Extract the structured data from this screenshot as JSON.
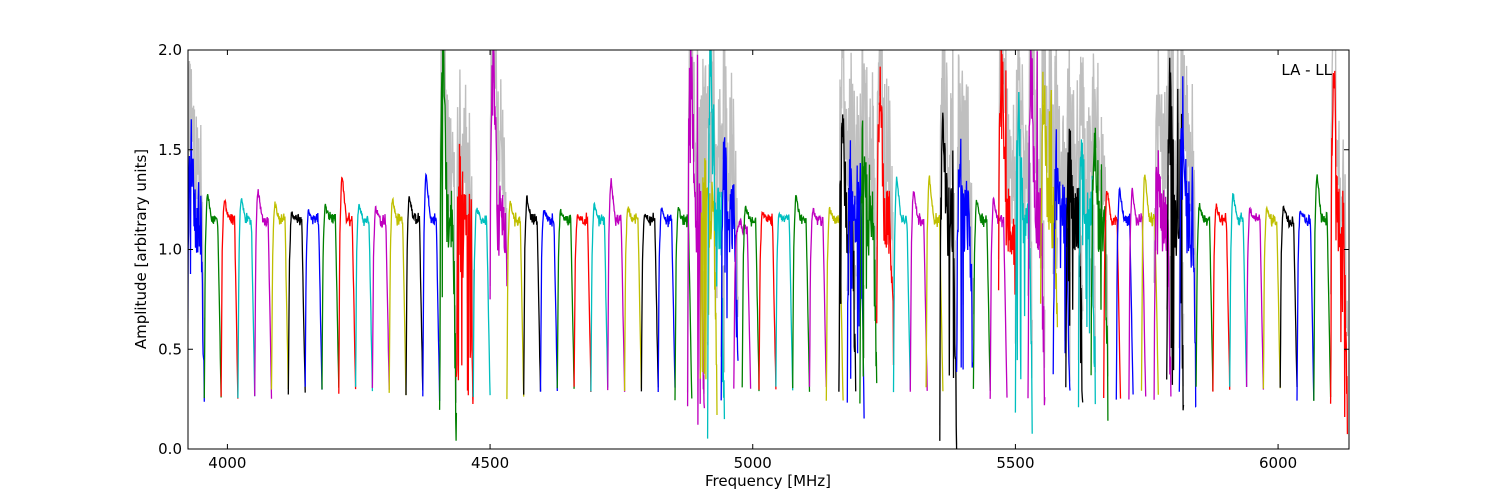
{
  "chart_data": {
    "type": "line",
    "annotation": "LA - LL",
    "xlabel": "Frequency [MHz]",
    "ylabel": "Amplitude [arbitrary units]",
    "xlim": [
      3925,
      6135
    ],
    "ylim": [
      0.0,
      2.0
    ],
    "xticks": [
      4000,
      4500,
      5000,
      5500,
      6000
    ],
    "xtick_labels": [
      "4000",
      "4500",
      "5000",
      "5500",
      "6000"
    ],
    "yticks": [
      0.0,
      0.5,
      1.0,
      1.5,
      2.0
    ],
    "ytick_labels": [
      "0.0",
      "0.5",
      "1.0",
      "1.5",
      "2.0"
    ],
    "grid": false,
    "band_width_mhz": 32,
    "color_cycle": [
      "#0000ff",
      "#008000",
      "#ff0000",
      "#00bfbf",
      "#bf00bf",
      "#bfbf00",
      "#000000"
    ],
    "background_series_color": "#bfbfbf",
    "series": [
      {
        "x": 3924,
        "peak": 1.55,
        "min": 0.28,
        "color": "#0000ff"
      },
      {
        "x": 3956,
        "peak": 1.28,
        "min": 0.26,
        "color": "#008000"
      },
      {
        "x": 3988,
        "peak": 1.25,
        "min": 0.26,
        "color": "#ff0000"
      },
      {
        "x": 4020,
        "peak": 1.26,
        "min": 0.26,
        "color": "#00bfbf"
      },
      {
        "x": 4052,
        "peak": 1.3,
        "min": 0.26,
        "color": "#bf00bf"
      },
      {
        "x": 4084,
        "peak": 1.23,
        "min": 0.29,
        "color": "#bfbf00"
      },
      {
        "x": 4116,
        "peak": 1.18,
        "min": 0.28,
        "color": "#000000"
      },
      {
        "x": 4148,
        "peak": 1.19,
        "min": 0.3,
        "color": "#0000ff"
      },
      {
        "x": 4180,
        "peak": 1.22,
        "min": 0.3,
        "color": "#008000"
      },
      {
        "x": 4212,
        "peak": 1.37,
        "min": 0.29,
        "color": "#ff0000"
      },
      {
        "x": 4244,
        "peak": 1.23,
        "min": 0.3,
        "color": "#00bfbf"
      },
      {
        "x": 4276,
        "peak": 1.21,
        "min": 0.3,
        "color": "#bf00bf"
      },
      {
        "x": 4308,
        "peak": 1.25,
        "min": 0.28,
        "color": "#bfbf00"
      },
      {
        "x": 4340,
        "peak": 1.27,
        "min": 0.28,
        "color": "#000000"
      },
      {
        "x": 4372,
        "peak": 1.38,
        "min": 0.25,
        "color": "#0000ff"
      },
      {
        "x": 4404,
        "peak": 2.0,
        "min": 0.04,
        "color": "#008000"
      },
      {
        "x": 4436,
        "peak": 1.43,
        "min": 0.25,
        "color": "#ff0000"
      },
      {
        "x": 4468,
        "peak": 1.2,
        "min": 0.26,
        "color": "#00bfbf"
      },
      {
        "x": 4500,
        "peak": 2.0,
        "min": 0.9,
        "color": "#bf00bf"
      },
      {
        "x": 4532,
        "peak": 1.24,
        "min": 0.26,
        "color": "#bfbf00"
      },
      {
        "x": 4564,
        "peak": 1.26,
        "min": 0.28,
        "color": "#000000"
      },
      {
        "x": 4596,
        "peak": 1.2,
        "min": 0.3,
        "color": "#0000ff"
      },
      {
        "x": 4628,
        "peak": 1.19,
        "min": 0.3,
        "color": "#008000"
      },
      {
        "x": 4660,
        "peak": 1.17,
        "min": 0.3,
        "color": "#ff0000"
      },
      {
        "x": 4692,
        "peak": 1.22,
        "min": 0.3,
        "color": "#00bfbf"
      },
      {
        "x": 4724,
        "peak": 1.35,
        "min": 0.3,
        "color": "#bf00bf"
      },
      {
        "x": 4756,
        "peak": 1.21,
        "min": 0.3,
        "color": "#bfbf00"
      },
      {
        "x": 4788,
        "peak": 1.18,
        "min": 0.3,
        "color": "#000000"
      },
      {
        "x": 4820,
        "peak": 1.2,
        "min": 0.3,
        "color": "#0000ff"
      },
      {
        "x": 4852,
        "peak": 1.2,
        "min": 0.25,
        "color": "#008000"
      },
      {
        "x": 4876,
        "peak": 2.0,
        "min": 0.1,
        "color": "#bf00bf"
      },
      {
        "x": 4900,
        "peak": 1.4,
        "min": 0.25,
        "color": "#bfbf00"
      },
      {
        "x": 4914,
        "peak": 2.0,
        "min": 0.09,
        "color": "#00bfbf"
      },
      {
        "x": 4940,
        "peak": 1.5,
        "min": 0.28,
        "color": "#0000ff"
      },
      {
        "x": 4964,
        "peak": 1.1,
        "min": 0.3,
        "color": "#bf00bf"
      },
      {
        "x": 4980,
        "peak": 1.22,
        "min": 0.3,
        "color": "#008000"
      },
      {
        "x": 5012,
        "peak": 1.18,
        "min": 0.3,
        "color": "#ff0000"
      },
      {
        "x": 5044,
        "peak": 1.18,
        "min": 0.3,
        "color": "#00bfbf"
      },
      {
        "x": 5076,
        "peak": 1.27,
        "min": 0.3,
        "color": "#008000"
      },
      {
        "x": 5108,
        "peak": 1.2,
        "min": 0.3,
        "color": "#bf00bf"
      },
      {
        "x": 5140,
        "peak": 1.2,
        "min": 0.23,
        "color": "#bfbf00"
      },
      {
        "x": 5164,
        "peak": 1.68,
        "min": 0.25,
        "color": "#000000"
      },
      {
        "x": 5180,
        "peak": 1.45,
        "min": 0.3,
        "color": "#0000ff"
      },
      {
        "x": 5204,
        "peak": 1.55,
        "min": 0.3,
        "color": "#008000"
      },
      {
        "x": 5236,
        "peak": 1.8,
        "min": 0.55,
        "color": "#ff0000"
      },
      {
        "x": 5268,
        "peak": 1.36,
        "min": 0.3,
        "color": "#00bfbf"
      },
      {
        "x": 5300,
        "peak": 1.3,
        "min": 0.3,
        "color": "#bf00bf"
      },
      {
        "x": 5330,
        "peak": 1.36,
        "min": 0.3,
        "color": "#bfbf00"
      },
      {
        "x": 5356,
        "peak": 1.62,
        "min": 0.09,
        "color": "#000000"
      },
      {
        "x": 5388,
        "peak": 1.5,
        "min": 0.25,
        "color": "#0000ff"
      },
      {
        "x": 5420,
        "peak": 1.24,
        "min": 0.3,
        "color": "#008000"
      },
      {
        "x": 5452,
        "peak": 1.25,
        "min": 0.25,
        "color": "#bf00bf"
      },
      {
        "x": 5468,
        "peak": 2.0,
        "min": 0.9,
        "color": "#ff0000"
      },
      {
        "x": 5500,
        "peak": 1.7,
        "min": 0.25,
        "color": "#00bfbf"
      },
      {
        "x": 5524,
        "peak": 2.0,
        "min": 0.25,
        "color": "#bf00bf"
      },
      {
        "x": 5548,
        "peak": 1.8,
        "min": 0.75,
        "color": "#bfbf00"
      },
      {
        "x": 5572,
        "peak": 1.5,
        "min": 0.3,
        "color": "#0000ff"
      },
      {
        "x": 5596,
        "peak": 1.55,
        "min": 0.25,
        "color": "#000000"
      },
      {
        "x": 5620,
        "peak": 1.45,
        "min": 0.3,
        "color": "#00bfbf"
      },
      {
        "x": 5644,
        "peak": 1.55,
        "min": 0.25,
        "color": "#008000"
      },
      {
        "x": 5668,
        "peak": 1.3,
        "min": 0.25,
        "color": "#ff0000"
      },
      {
        "x": 5692,
        "peak": 1.3,
        "min": 0.26,
        "color": "#0000ff"
      },
      {
        "x": 5716,
        "peak": 1.3,
        "min": 0.25,
        "color": "#bf00bf"
      },
      {
        "x": 5740,
        "peak": 1.38,
        "min": 0.28,
        "color": "#bfbf00"
      },
      {
        "x": 5764,
        "peak": 1.4,
        "min": 0.23,
        "color": "#bf00bf"
      },
      {
        "x": 5788,
        "peak": 1.82,
        "min": 0.22,
        "color": "#000000"
      },
      {
        "x": 5812,
        "peak": 1.75,
        "min": 0.22,
        "color": "#0000ff"
      },
      {
        "x": 5844,
        "peak": 1.22,
        "min": 0.3,
        "color": "#008000"
      },
      {
        "x": 5876,
        "peak": 1.22,
        "min": 0.3,
        "color": "#ff0000"
      },
      {
        "x": 5908,
        "peak": 1.28,
        "min": 0.3,
        "color": "#00bfbf"
      },
      {
        "x": 5940,
        "peak": 1.2,
        "min": 0.3,
        "color": "#bf00bf"
      },
      {
        "x": 5972,
        "peak": 1.2,
        "min": 0.3,
        "color": "#bfbf00"
      },
      {
        "x": 6004,
        "peak": 1.22,
        "min": 0.3,
        "color": "#000000"
      },
      {
        "x": 6036,
        "peak": 1.2,
        "min": 0.25,
        "color": "#0000ff"
      },
      {
        "x": 6068,
        "peak": 1.38,
        "min": 0.25,
        "color": "#008000"
      },
      {
        "x": 6100,
        "peak": 2.0,
        "min": 0.12,
        "color": "#ff0000"
      }
    ]
  }
}
